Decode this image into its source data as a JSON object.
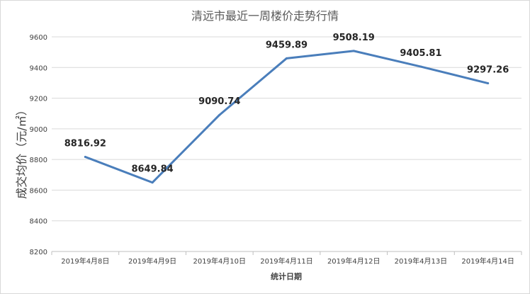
{
  "chart_data": {
    "type": "line",
    "title": "清远市最近一周楼价走势行情",
    "xlabel": "统计日期",
    "ylabel": "成交均价（元/㎡）",
    "categories": [
      "2019年4月8日",
      "2019年4月9日",
      "2019年4月10日",
      "2019年4月11日",
      "2019年4月12日",
      "2019年4月13日",
      "2019年4月14日"
    ],
    "series": [
      {
        "values": [
          8816.92,
          8649.84,
          9090.74,
          9459.89,
          9508.19,
          9405.81,
          9297.26
        ],
        "labels": [
          "8816.92",
          "8649.84",
          "9090.74",
          "9459.89",
          "9508.19",
          "9405.81",
          "9297.26"
        ],
        "color": "#4a7ebb"
      }
    ],
    "yticks": [
      "8200",
      "8400",
      "8600",
      "8800",
      "9000",
      "9200",
      "9400",
      "9600"
    ],
    "ylim": [
      8200,
      9600
    ],
    "grid": true,
    "legend": "none"
  }
}
